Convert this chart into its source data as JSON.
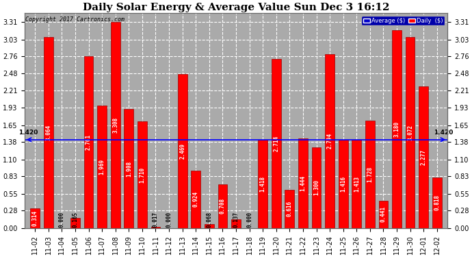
{
  "title": "Daily Solar Energy & Average Value Sun Dec 3 16:12",
  "copyright": "Copyright 2017 Cartronics.com",
  "categories": [
    "11-02",
    "11-03",
    "11-04",
    "11-05",
    "11-06",
    "11-07",
    "11-08",
    "11-09",
    "11-10",
    "11-11",
    "11-12",
    "11-13",
    "11-14",
    "11-15",
    "11-16",
    "11-17",
    "11-18",
    "11-19",
    "11-20",
    "11-21",
    "11-22",
    "11-23",
    "11-24",
    "11-25",
    "11-26",
    "11-27",
    "11-28",
    "11-29",
    "11-30",
    "12-01",
    "12-02"
  ],
  "values": [
    0.314,
    3.064,
    0.0,
    0.165,
    2.761,
    1.969,
    3.308,
    1.908,
    1.71,
    0.017,
    0.0,
    2.469,
    0.924,
    0.068,
    0.708,
    0.137,
    0.0,
    1.418,
    2.714,
    0.616,
    1.444,
    1.3,
    2.794,
    1.416,
    1.413,
    1.728,
    0.441,
    3.18,
    3.072,
    2.277,
    0.818
  ],
  "average_line": 1.42,
  "bar_color": "#FF0000",
  "bar_edge_color": "#990000",
  "average_line_color": "#0000FF",
  "background_color": "#FFFFFF",
  "plot_bg_color": "#AAAAAA",
  "grid_color": "#FFFFFF",
  "title_fontsize": 11,
  "tick_fontsize": 7,
  "value_fontsize": 5.5,
  "ymax": 3.45,
  "yticks": [
    0.0,
    0.28,
    0.55,
    0.83,
    1.1,
    1.38,
    1.65,
    1.93,
    2.21,
    2.48,
    2.76,
    3.03,
    3.31
  ],
  "avg_label": "1.420",
  "legend_avg_label": "Average ($)",
  "legend_daily_label": "Daily  ($)"
}
